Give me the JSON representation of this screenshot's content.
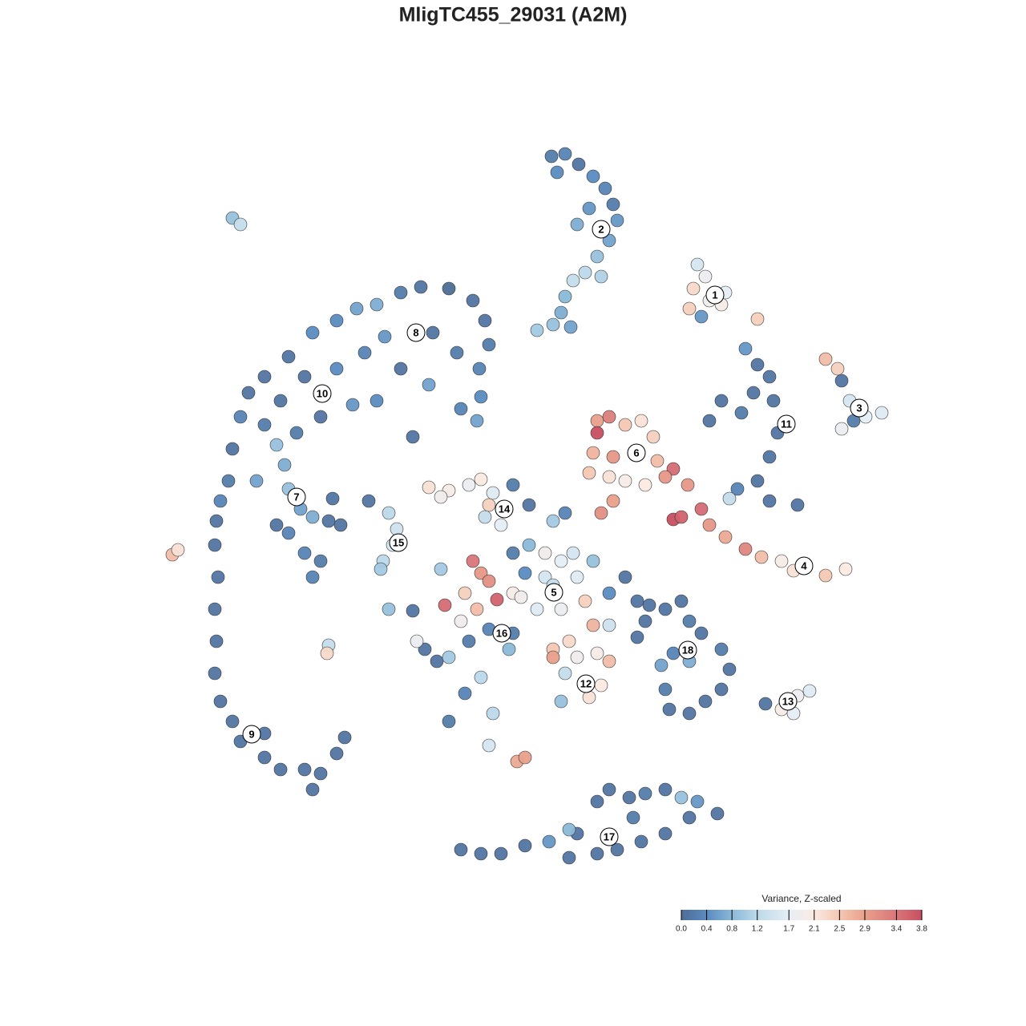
{
  "chart_data": {
    "type": "scatter",
    "title": "MligTC455_29031 (A2M)",
    "xlim": [
      -64,
      64
    ],
    "ylim": [
      -64,
      64
    ],
    "x": [
      4.8,
      6.5,
      8.2,
      10,
      11.5,
      12.5,
      13,
      12,
      10.5,
      9,
      7.5,
      6.5,
      6,
      5,
      3,
      7.2,
      5.5,
      9.5,
      8,
      11,
      23,
      24,
      22.5,
      24.5,
      26,
      23.5,
      26.5,
      22,
      30.5,
      39,
      40.5,
      41,
      42,
      44,
      46,
      41,
      42.5,
      29,
      30.5,
      32,
      30,
      32.5,
      26,
      24.5,
      28.5,
      33,
      32,
      30.5,
      28,
      27,
      32,
      35.5,
      10.5,
      12,
      10.5,
      14,
      16,
      17.5,
      10,
      12.5,
      15.5,
      18,
      20,
      9.5,
      12,
      14,
      16.5,
      19,
      12.5,
      11,
      21.8,
      23.5,
      24.5,
      26.5,
      29,
      31,
      33.5,
      35,
      36.5,
      39,
      41.5,
      20,
      21,
      -14,
      -11.5,
      -8,
      -5,
      -3.5,
      -3,
      -4.2,
      -4,
      -4.5,
      -17,
      -19.5,
      -22,
      -25,
      -28,
      -31,
      -33,
      -34,
      -35,
      -35.5,
      -36.5,
      -16,
      -10,
      -7,
      -18.5,
      -22,
      -26,
      -29,
      -31,
      -14,
      -10.5,
      -17,
      -20,
      -24,
      -27,
      -28.5,
      -32,
      -29.5,
      -12.5,
      -6.5,
      -28,
      -26.5,
      -25,
      -23,
      -21.5,
      -28,
      -26,
      -24,
      -25,
      -29.5,
      -22.5,
      -37,
      -37.2,
      -36.8,
      -37.2,
      -37,
      -37.2,
      -36.5,
      -35,
      -34,
      -31,
      -29,
      -26,
      -24,
      -22,
      -21,
      -25,
      -31,
      -35,
      -34,
      -42.5,
      -41.8,
      -23,
      -23.2,
      -18,
      -15.5,
      -14.5,
      -15,
      -16.2,
      -16.5,
      -10.5,
      -8,
      -5.5,
      -4,
      -2.5,
      -3.5,
      -1.5,
      0,
      2,
      -3,
      -9,
      0,
      2,
      4,
      6,
      7.5,
      5,
      6.5,
      1.5,
      4,
      8,
      10,
      0,
      3,
      6,
      9,
      12,
      14,
      1,
      5,
      10,
      12,
      -5,
      -4,
      -3,
      -6,
      -8.5,
      -2,
      -4.5,
      -6.5,
      -3,
      0,
      -11,
      -9.5,
      -8,
      -12,
      -5.5,
      -0.5,
      -4,
      -6,
      -8,
      -2.5,
      -3,
      0.5,
      1.5,
      -9,
      -15.5,
      -12.5,
      5,
      7,
      8,
      10.5,
      12,
      6.5,
      6,
      9.5,
      11,
      5,
      15.5,
      17,
      19,
      21,
      22,
      23.5,
      26,
      27,
      26,
      24,
      22,
      19.5,
      19,
      18.5,
      20,
      15.5,
      16.5,
      22,
      31.5,
      33.5,
      34,
      35.5,
      37,
      35,
      -6.5,
      -4,
      -1.5,
      1.5,
      4.5,
      7,
      8,
      10.5,
      12,
      14.5,
      16.5,
      19,
      21,
      23,
      25.5,
      22,
      19,
      16,
      13,
      10.5,
      7,
      15
    ],
    "y": [
      44.5,
      44.8,
      43.5,
      42,
      40.5,
      38.5,
      36.5,
      34,
      32,
      30,
      29,
      27,
      25,
      23.5,
      22.8,
      23.2,
      42.5,
      38,
      36,
      29.5,
      31,
      29.5,
      28,
      26.5,
      26,
      24.5,
      27.5,
      25.5,
      24.2,
      19.2,
      18,
      16.5,
      14,
      12,
      12.5,
      10.5,
      11.5,
      20.5,
      18.5,
      17,
      15,
      14,
      14,
      11.5,
      12.5,
      10,
      7,
      4,
      3,
      1.8,
      1.5,
      1,
      11.5,
      12,
      10,
      11,
      11.5,
      9.5,
      7.5,
      7,
      7.5,
      6.5,
      5.5,
      5,
      4.5,
      4,
      3.5,
      4.5,
      1.5,
      0,
      3.5,
      0.5,
      -1.5,
      -3,
      -4.5,
      -5.5,
      -6,
      -7.2,
      -6.8,
      -7.8,
      -7,
      -0.8,
      -0.5,
      27.5,
      28.2,
      28,
      26.5,
      24,
      21,
      18,
      14.5,
      11.5,
      26,
      25.5,
      24,
      22.5,
      19.5,
      17,
      15,
      12,
      8,
      4,
      1.5,
      22,
      22.5,
      20,
      20,
      18,
      17,
      14,
      11,
      18,
      16,
      14,
      13.5,
      12,
      10,
      6,
      4,
      8.5,
      9.5,
      13,
      3,
      0.5,
      -0.5,
      -1,
      -1.5,
      -2.5,
      -5,
      -6,
      -8,
      -1.5,
      1.8,
      -1,
      -4,
      -8,
      -12,
      -16,
      -20,
      -23.5,
      -26,
      -28.5,
      -30.5,
      -32,
      -32,
      -32.5,
      -30,
      -28,
      -34.5,
      -27.5,
      36.8,
      36,
      -5.2,
      -4.6,
      -16.5,
      -17.5,
      1.5,
      0,
      -2,
      -4,
      -6,
      -7,
      3.2,
      2.8,
      3.5,
      4.2,
      2.5,
      -0.5,
      -1.5,
      3.5,
      1,
      1,
      2,
      -5,
      -4,
      -5,
      -6,
      -5,
      -1,
      0,
      -7.5,
      -8,
      -8,
      -6,
      -10,
      -12,
      -12,
      -11,
      -10,
      -8,
      -10.5,
      -9,
      -14,
      -14,
      -6,
      -7.5,
      -8.5,
      -10,
      -11.5,
      -10.8,
      -12,
      -13.5,
      -14.5,
      -15,
      -17,
      -18.5,
      -18,
      -16,
      -16,
      -17,
      -20.5,
      -22.5,
      -26,
      -25,
      -29,
      -31,
      -30.5,
      -7,
      -12,
      -12.2,
      -17,
      -16,
      -18,
      -17.5,
      -18.5,
      -20,
      -23.5,
      -23,
      -21.5,
      -18,
      -11,
      -11.5,
      -12,
      -11,
      -13.5,
      -15,
      -17,
      -19.5,
      -22,
      -23.5,
      -25,
      -24.5,
      -22,
      -19,
      -17.5,
      -15.5,
      -13.5,
      -18.5,
      -23.8,
      -24.5,
      -23.5,
      -22.8,
      -22.2,
      -25,
      -42,
      -42.5,
      -42.5,
      -41.5,
      -41,
      -43,
      -40,
      -36,
      -34.5,
      -35.5,
      -35,
      -34.5,
      -35.5,
      -36,
      -37.5,
      -38,
      -40,
      -41,
      -42,
      -42.5,
      -39.5,
      -38
    ],
    "values": [
      0.2,
      0.3,
      0.1,
      0.4,
      0.3,
      0.2,
      0.5,
      0.6,
      0.9,
      1.2,
      1.3,
      0.8,
      0.7,
      0.9,
      1.0,
      0.6,
      0.4,
      0.5,
      0.7,
      1.1,
      1.5,
      1.8,
      2.3,
      1.9,
      2.0,
      0.5,
      1.7,
      2.4,
      2.4,
      2.6,
      2.4,
      0.1,
      1.5,
      1.7,
      1.6,
      1.8,
      0.2,
      0.5,
      0.1,
      0.1,
      0.1,
      0.1,
      0.1,
      0.1,
      0.2,
      0.1,
      0.1,
      0.1,
      0.3,
      1.3,
      0.1,
      0.1,
      2.9,
      3.3,
      3.8,
      2.5,
      2.2,
      2.4,
      2.7,
      3.0,
      2.3,
      2.6,
      3.5,
      2.5,
      2.2,
      2.0,
      2.1,
      3.0,
      2.9,
      3.1,
      3.0,
      3.5,
      3.0,
      2.8,
      3.2,
      2.6,
      2.0,
      2.2,
      2.7,
      2.5,
      2.1,
      3.8,
      3.6,
      0.2,
      0.1,
      0.0,
      0.1,
      0.1,
      0.2,
      0.3,
      0.4,
      0.6,
      0.7,
      0.6,
      0.4,
      0.4,
      0.1,
      0.1,
      0.1,
      0.3,
      0.1,
      0.2,
      0.3,
      0.5,
      0.1,
      0.2,
      0.3,
      0.4,
      0.1,
      0.1,
      0.2,
      0.1,
      0.6,
      0.4,
      0.5,
      0.1,
      0.2,
      0.7,
      0.6,
      0.9,
      0.1,
      0.3,
      0.9,
      0.6,
      0.7,
      0.1,
      0.1,
      0.3,
      0.3,
      0.2,
      0.3,
      0.1,
      0.1,
      0.1,
      0.1,
      0.1,
      0.1,
      0.1,
      0.1,
      0.1,
      0.1,
      0.1,
      0.1,
      0.1,
      0.1,
      0.1,
      0.1,
      0.1,
      0.1,
      0.1,
      0.9,
      1.3,
      2.6,
      2.2,
      1.3,
      2.3,
      0.1,
      1.2,
      1.4,
      1.5,
      1.2,
      1.0,
      2.2,
      2.0,
      1.8,
      2.1,
      1.6,
      1.3,
      1.7,
      0.2,
      0.1,
      2.4,
      1.9,
      0.2,
      0.8,
      1.9,
      1.7,
      1.5,
      1.0,
      0.3,
      0.4,
      1.5,
      1.6,
      0.9,
      2.0,
      1.6,
      1.8,
      2.4,
      0.4,
      0.1,
      1.9,
      1.3,
      2.7,
      1.4,
      3.4,
      3.0,
      3.1,
      2.4,
      3.5,
      3.6,
      2.6,
      1.9,
      0.3,
      0.2,
      0.1,
      0.1,
      1.0,
      1.8,
      0.2,
      0.8,
      1.2,
      0.3,
      0.2,
      1.2,
      1.5,
      2.8,
      2.9,
      1.0,
      0.9,
      0.1,
      2.5,
      2.3,
      1.9,
      2.0,
      2.6,
      1.3,
      0.9,
      2.2,
      2.1,
      2.9,
      0.1,
      0.1,
      0.1,
      0.1,
      0.2,
      0.1,
      0.2,
      0.1,
      0.1,
      0.1,
      0.1,
      0.1,
      0.2,
      0.6,
      0.3,
      0.1,
      0.1,
      0.7,
      0.1,
      2.0,
      3.8,
      1.8,
      1.6,
      1.7,
      0.1,
      0.1,
      0.1,
      0.1,
      0.5,
      0.1,
      0.1,
      0.1,
      0.1,
      0.1,
      0.2,
      0.1,
      0.9,
      0.5,
      0.1,
      0.1,
      0.1,
      0.1,
      0.1,
      0.1,
      0.8,
      0.2
    ],
    "annotations": [
      {
        "text": "1",
        "x": 25.2,
        "y": 27.2
      },
      {
        "text": "2",
        "x": 11,
        "y": 35.4
      },
      {
        "text": "3",
        "x": 43.2,
        "y": 13.1
      },
      {
        "text": "4",
        "x": 36.3,
        "y": -6.6
      },
      {
        "text": "5",
        "x": 5.1,
        "y": -9.9
      },
      {
        "text": "6",
        "x": 15.4,
        "y": 7.5
      },
      {
        "text": "7",
        "x": -27,
        "y": 2
      },
      {
        "text": "8",
        "x": -12.1,
        "y": 22.5
      },
      {
        "text": "9",
        "x": -32.6,
        "y": -27.6
      },
      {
        "text": "10",
        "x": -23.8,
        "y": 14.9
      },
      {
        "text": "11",
        "x": 34.1,
        "y": 11.1
      },
      {
        "text": "12",
        "x": 9.1,
        "y": -21.3
      },
      {
        "text": "13",
        "x": 34.3,
        "y": -23.5
      },
      {
        "text": "14",
        "x": -1.1,
        "y": 0.5
      },
      {
        "text": "15",
        "x": -14.3,
        "y": -3.7
      },
      {
        "text": "16",
        "x": -1.4,
        "y": -15
      },
      {
        "text": "17",
        "x": 12,
        "y": -40.4
      },
      {
        "text": "18",
        "x": 21.8,
        "y": -17.1
      }
    ],
    "colorbar": {
      "title": "Variance, Z-scaled",
      "range": [
        0,
        3.8
      ],
      "ticks": [
        {
          "value": 0,
          "label": "0.0"
        },
        {
          "value": 0.4,
          "label": "0.4"
        },
        {
          "value": 0.8,
          "label": "0.8"
        },
        {
          "value": 1.2,
          "label": "1.2"
        },
        {
          "value": 1.7,
          "label": "1.7"
        },
        {
          "value": 2.1,
          "label": "2.1"
        },
        {
          "value": 2.5,
          "label": "2.5"
        },
        {
          "value": 2.9,
          "label": "2.9"
        },
        {
          "value": 3.4,
          "label": "3.4"
        },
        {
          "value": 3.8,
          "label": "3.8"
        }
      ],
      "colors": [
        "#4e6d96",
        "#5a8bc0",
        "#8ab9d8",
        "#bcd9ea",
        "#e6eef5",
        "#fbeae2",
        "#f4c7b2",
        "#e9a08a",
        "#d9757a",
        "#c84f60"
      ]
    }
  }
}
